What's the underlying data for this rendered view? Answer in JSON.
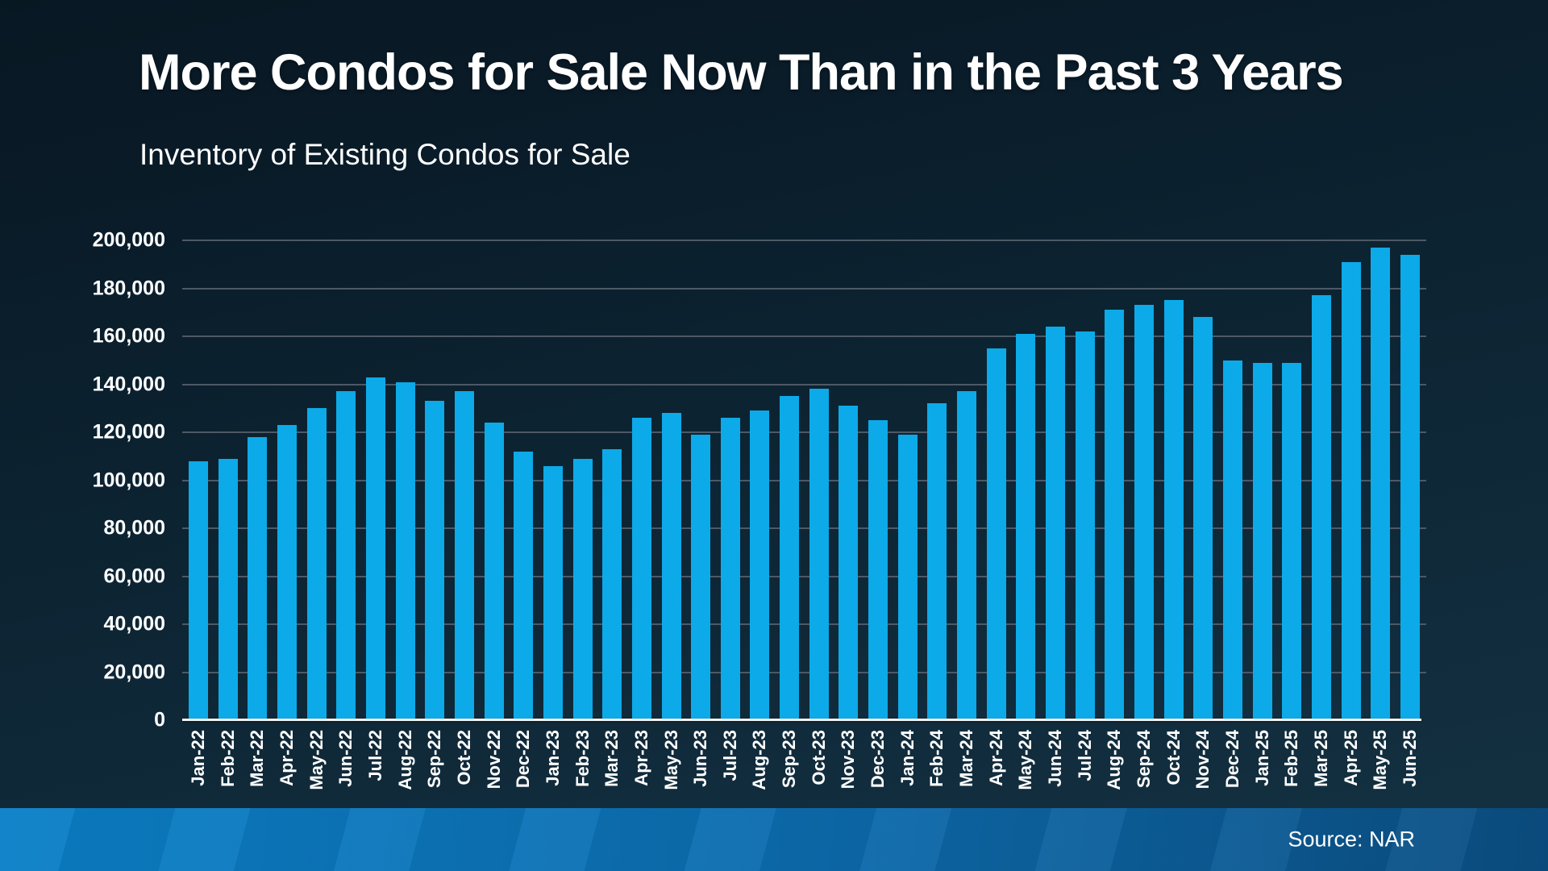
{
  "page": {
    "title": "More Condos for Sale Now Than in the Past 3 Years",
    "subtitle": "Inventory of Existing Condos for Sale",
    "source_label": "Source: NAR"
  },
  "colors": {
    "bar": "#0caae8",
    "background_top": "#0a1b28",
    "background_bottom": "#143243",
    "gridline": "#4d5965",
    "axis_line": "#f2f2f2",
    "text": "#ffffff",
    "band_left": "#0b80c8",
    "band_right": "#0b4e82"
  },
  "chart_data": {
    "type": "bar",
    "title": "More Condos for Sale Now Than in the Past 3 Years",
    "subtitle": "Inventory of Existing Condos for Sale",
    "source": "Source: NAR",
    "categories": [
      "Jan-22",
      "Feb-22",
      "Mar-22",
      "Apr-22",
      "May-22",
      "Jun-22",
      "Jul-22",
      "Aug-22",
      "Sep-22",
      "Oct-22",
      "Nov-22",
      "Dec-22",
      "Jan-23",
      "Feb-23",
      "Mar-23",
      "Apr-23",
      "May-23",
      "Jun-23",
      "Jul-23",
      "Aug-23",
      "Sep-23",
      "Oct-23",
      "Nov-23",
      "Dec-23",
      "Jan-24",
      "Feb-24",
      "Mar-24",
      "Apr-24",
      "May-24",
      "Jun-24",
      "Jul-24",
      "Aug-24",
      "Sep-24",
      "Oct-24",
      "Nov-24",
      "Dec-24",
      "Jan-25",
      "Feb-25",
      "Mar-25",
      "Apr-25",
      "May-25",
      "Jun-25"
    ],
    "values": [
      108000,
      109000,
      118000,
      123000,
      130000,
      137000,
      143000,
      141000,
      133000,
      137000,
      124000,
      112000,
      106000,
      109000,
      113000,
      126000,
      128000,
      119000,
      126000,
      129000,
      135000,
      138000,
      131000,
      125000,
      119000,
      132000,
      137000,
      155000,
      161000,
      164000,
      162000,
      171000,
      173000,
      175000,
      168000,
      150000,
      149000,
      149000,
      177000,
      191000,
      197000,
      194000
    ],
    "ylim": [
      0,
      200000
    ],
    "ytick_step": 20000,
    "ytick_labels": [
      "0",
      "20,000",
      "40,000",
      "60,000",
      "80,000",
      "100,000",
      "120,000",
      "140,000",
      "160,000",
      "180,000",
      "200,000"
    ],
    "grid": true,
    "legend": false,
    "x_label_rotation": -90
  }
}
